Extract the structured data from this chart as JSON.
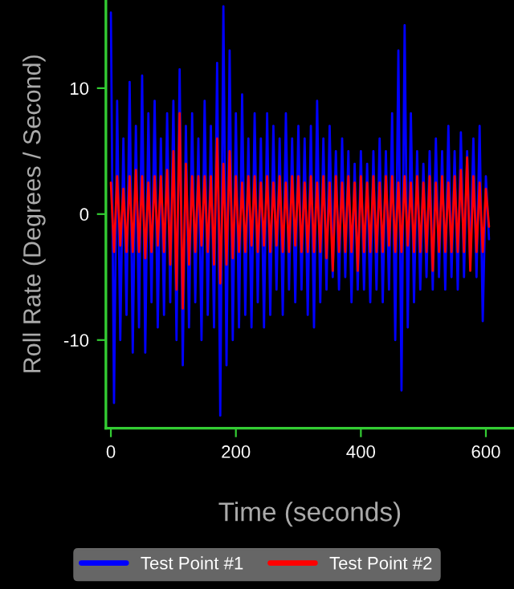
{
  "chart_data": {
    "type": "line",
    "xlabel": "Time (seconds)",
    "ylabel": "Roll Rate (Degrees / Second)",
    "x": [
      0,
      5,
      10,
      15,
      20,
      25,
      30,
      35,
      40,
      45,
      50,
      55,
      60,
      65,
      70,
      75,
      80,
      85,
      90,
      95,
      100,
      105,
      110,
      115,
      120,
      125,
      130,
      135,
      140,
      145,
      150,
      155,
      160,
      165,
      170,
      175,
      180,
      185,
      190,
      195,
      200,
      205,
      210,
      215,
      220,
      225,
      230,
      235,
      240,
      245,
      250,
      255,
      260,
      265,
      270,
      275,
      280,
      285,
      290,
      295,
      300,
      305,
      310,
      315,
      320,
      325,
      330,
      335,
      340,
      345,
      350,
      355,
      360,
      365,
      370,
      375,
      380,
      385,
      390,
      395,
      400,
      405,
      410,
      415,
      420,
      425,
      430,
      435,
      440,
      445,
      450,
      455,
      460,
      465,
      470,
      475,
      480,
      485,
      490,
      495,
      500,
      505,
      510,
      515,
      520,
      525,
      530,
      535,
      540,
      545,
      550,
      555,
      560,
      565,
      570,
      575,
      580,
      585,
      590,
      595,
      600,
      605
    ],
    "series": [
      {
        "name": "Test Point #1",
        "color": "#0000ff",
        "values": [
          16,
          -15,
          9,
          -10,
          6,
          -8,
          10.5,
          -11,
          7,
          -9,
          11,
          -11,
          8,
          -7,
          9,
          -9,
          6,
          -8,
          8,
          -7,
          9,
          -10,
          11.5,
          -12,
          7,
          -9,
          8,
          -7,
          6,
          -10,
          9,
          -8,
          7,
          -9,
          12,
          -16,
          16.5,
          -12,
          13,
          -10,
          8,
          -9,
          9.5,
          -8,
          6,
          -9,
          8,
          -7,
          6,
          -9,
          8,
          -8,
          7,
          -6,
          6,
          -8,
          8,
          -6,
          6,
          -7,
          7,
          -6,
          6,
          -8,
          7,
          -9,
          9,
          -7,
          6,
          -6,
          7,
          -5,
          5,
          -6,
          6,
          -5,
          5,
          -7,
          4,
          -6,
          5,
          -6,
          4,
          -7,
          5,
          -6,
          6,
          -7,
          5,
          -6,
          8,
          -10,
          13,
          -14,
          15,
          -9,
          8,
          -7,
          5,
          -6,
          4,
          -5,
          5,
          -6,
          6,
          -5,
          5,
          -6,
          7,
          -5,
          5,
          -6,
          6.5,
          -5,
          5,
          -4,
          6,
          -5,
          7,
          -8.5,
          3,
          -2
        ]
      },
      {
        "name": "Test Point #2",
        "color": "#ff0000",
        "values": [
          2.5,
          -3,
          3,
          -2.5,
          2,
          -3,
          3,
          -3,
          3.5,
          -3,
          3,
          -3.5,
          2.5,
          -3,
          3,
          -2.5,
          3,
          -3,
          3.5,
          -4,
          5,
          -6,
          8,
          -7.5,
          4,
          -4,
          3,
          -3,
          3,
          -2.5,
          3,
          -3,
          3,
          -4,
          6,
          -5.5,
          4,
          -4,
          5,
          -3.5,
          3,
          -3,
          2.5,
          -3,
          3,
          -2.5,
          3,
          -3,
          2.5,
          -2.5,
          3,
          -3,
          2.5,
          -2.5,
          3,
          -3,
          2.5,
          -3,
          3,
          -2.5,
          3,
          -3,
          2.5,
          -3,
          3,
          -3,
          2.5,
          -3,
          3,
          -3.5,
          2.5,
          -4.5,
          3,
          -3,
          2.5,
          -3,
          3,
          -3,
          2.5,
          -4.5,
          3,
          -3,
          2.5,
          -3,
          3,
          -3,
          2.5,
          -3,
          3,
          -2.5,
          3,
          -3,
          2.5,
          -3,
          3,
          -2.5,
          2.5,
          -3,
          3,
          -3,
          2.5,
          -3,
          3,
          -4.5,
          2.5,
          -3,
          3,
          -3,
          2.5,
          -3,
          3,
          -3,
          3.5,
          -3,
          4.5,
          -4.5,
          3,
          -3,
          2.5,
          -3,
          2,
          -1
        ]
      }
    ],
    "xlim": [
      -8,
      645
    ],
    "ylim": [
      -17,
      17
    ],
    "xticks": [
      0,
      200,
      400,
      600
    ],
    "yticks": [
      -10,
      0,
      10
    ],
    "grid": false,
    "legend": "bottom",
    "line_style": "solid",
    "marker": "none"
  }
}
